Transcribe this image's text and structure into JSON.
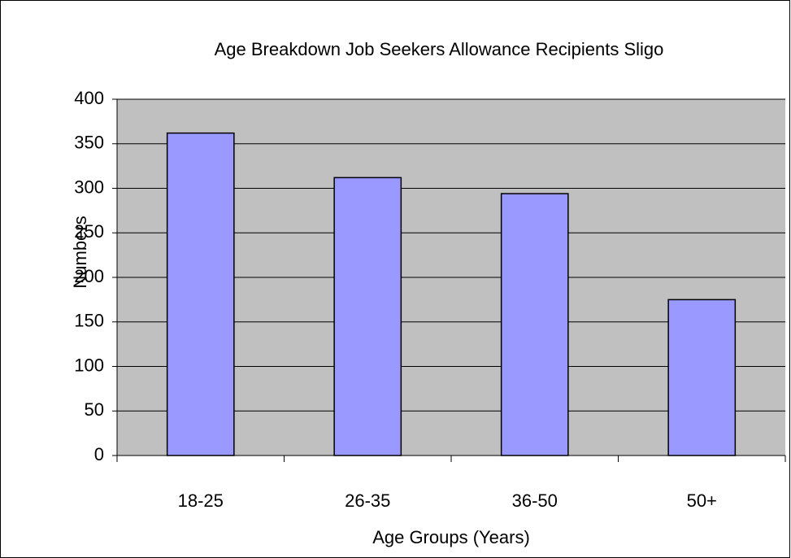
{
  "chart_data": {
    "type": "bar",
    "title": "Age Breakdown Job Seekers Allowance Recipients Sligo",
    "x_label": "Age Groups (Years)",
    "y_label": "Numbers",
    "categories": [
      "18-25",
      "26-35",
      "36-50",
      "50+"
    ],
    "values": [
      362,
      312,
      294,
      175
    ],
    "color": "#9999ff",
    "ylim": [
      0,
      400
    ],
    "yticks": [
      0,
      50,
      100,
      150,
      200,
      250,
      300,
      350,
      400
    ],
    "grid": true
  }
}
